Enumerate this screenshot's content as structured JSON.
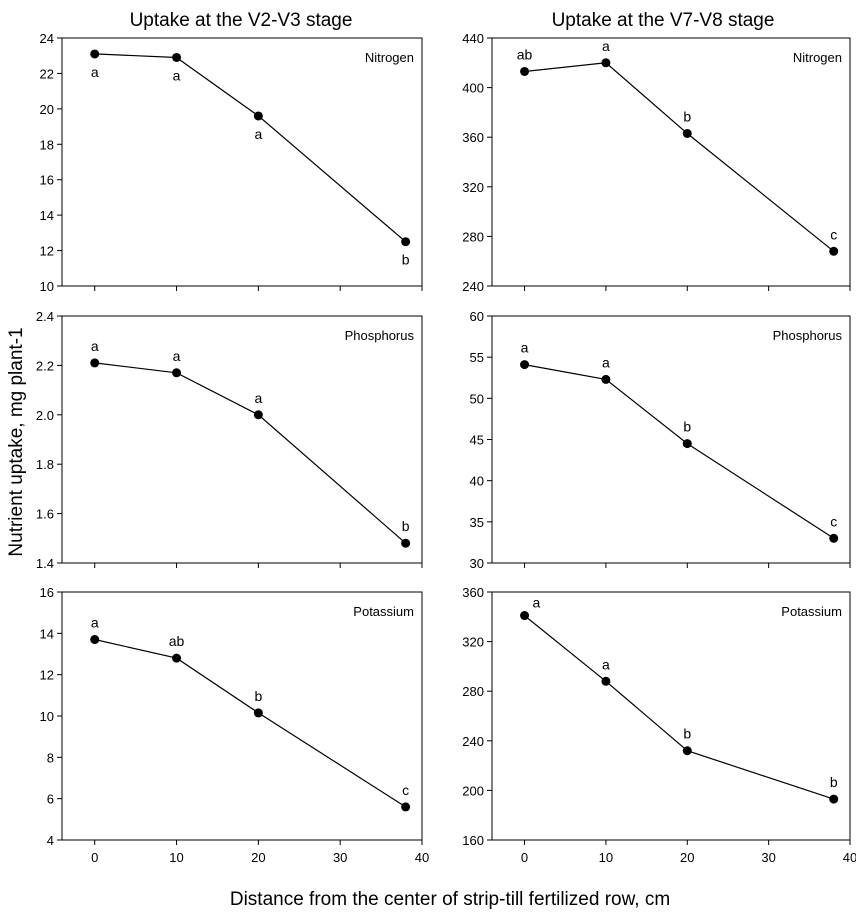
{
  "figure": {
    "ylabel": "Nutrient uptake, mg plant-1",
    "xlabel": "Distance from the center of strip-till fertilized row, cm",
    "col_titles": [
      "Uptake at the V2-V3 stage",
      "Uptake at the V7-V8 stage"
    ]
  },
  "chart_data": [
    {
      "type": "line",
      "stage": "V2-V3",
      "nutrient": "Nitrogen",
      "x": [
        0,
        10,
        20,
        38
      ],
      "values": [
        23.1,
        22.9,
        19.6,
        12.5
      ],
      "letters": [
        "a",
        "a",
        "a",
        "b"
      ],
      "letter_pos": [
        "below",
        "below",
        "below",
        "below"
      ],
      "xlim": [
        -4,
        40
      ],
      "xticks": [
        0,
        10,
        20,
        30,
        40
      ],
      "ylim": [
        10,
        24
      ],
      "yticks": [
        10,
        12,
        14,
        16,
        18,
        20,
        22,
        24
      ],
      "xtick_labels": false,
      "grid": false,
      "legend": "top-right"
    },
    {
      "type": "line",
      "stage": "V7-V8",
      "nutrient": "Nitrogen",
      "x": [
        0,
        10,
        20,
        38
      ],
      "values": [
        413,
        420,
        363,
        268
      ],
      "letters": [
        "ab",
        "a",
        "b",
        "c"
      ],
      "letter_pos": [
        "above",
        "above",
        "above",
        "above"
      ],
      "xlim": [
        -4,
        40
      ],
      "xticks": [
        0,
        10,
        20,
        30,
        40
      ],
      "ylim": [
        240,
        440
      ],
      "yticks": [
        240,
        280,
        320,
        360,
        400,
        440
      ],
      "xtick_labels": false,
      "grid": false,
      "legend": "top-right"
    },
    {
      "type": "line",
      "stage": "V2-V3",
      "nutrient": "Phosphorus",
      "x": [
        0,
        10,
        20,
        38
      ],
      "values": [
        2.21,
        2.17,
        2.0,
        1.48
      ],
      "letters": [
        "a",
        "a",
        "a",
        "b"
      ],
      "letter_pos": [
        "above",
        "above",
        "above",
        "above"
      ],
      "xlim": [
        -4,
        40
      ],
      "xticks": [
        0,
        10,
        20,
        30,
        40
      ],
      "ylim": [
        1.4,
        2.4
      ],
      "yticks": [
        "1.4",
        "1.6",
        "1.8",
        "2.0",
        "2.2",
        "2.4"
      ],
      "xtick_labels": false,
      "grid": false,
      "legend": "top-right"
    },
    {
      "type": "line",
      "stage": "V7-V8",
      "nutrient": "Phosphorus",
      "x": [
        0,
        10,
        20,
        38
      ],
      "values": [
        54.1,
        52.3,
        44.5,
        33.0
      ],
      "letters": [
        "a",
        "a",
        "b",
        "c"
      ],
      "letter_pos": [
        "above",
        "above",
        "above",
        "above"
      ],
      "xlim": [
        -4,
        40
      ],
      "xticks": [
        0,
        10,
        20,
        30,
        40
      ],
      "ylim": [
        30,
        60
      ],
      "yticks": [
        30,
        35,
        40,
        45,
        50,
        55,
        60
      ],
      "xtick_labels": false,
      "grid": false,
      "legend": "top-right"
    },
    {
      "type": "line",
      "stage": "V2-V3",
      "nutrient": "Potassium",
      "x": [
        0,
        10,
        20,
        38
      ],
      "values": [
        13.7,
        12.8,
        10.15,
        5.6
      ],
      "letters": [
        "a",
        "ab",
        "b",
        "c"
      ],
      "letter_pos": [
        "above",
        "above",
        "above",
        "above"
      ],
      "xlim": [
        -4,
        40
      ],
      "xticks": [
        0,
        10,
        20,
        30,
        40
      ],
      "ylim": [
        4,
        16
      ],
      "yticks": [
        4,
        6,
        8,
        10,
        12,
        14,
        16
      ],
      "xtick_labels": true,
      "grid": false,
      "legend": "top-right"
    },
    {
      "type": "line",
      "stage": "V7-V8",
      "nutrient": "Potassium",
      "x": [
        0,
        10,
        20,
        38
      ],
      "values": [
        341,
        288,
        232,
        193
      ],
      "letters": [
        "a",
        "a",
        "b",
        "b"
      ],
      "letter_pos": [
        "above-right",
        "above",
        "above",
        "above"
      ],
      "xlim": [
        -4,
        40
      ],
      "xticks": [
        0,
        10,
        20,
        30,
        40
      ],
      "ylim": [
        160,
        360
      ],
      "yticks": [
        160,
        200,
        240,
        280,
        320,
        360
      ],
      "xtick_labels": true,
      "grid": false,
      "legend": "top-right"
    }
  ]
}
